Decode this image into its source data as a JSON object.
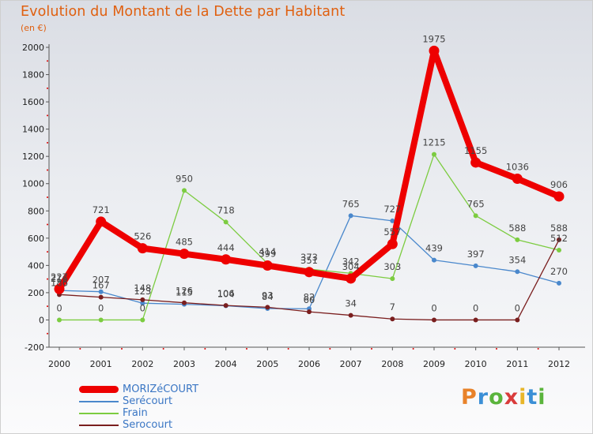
{
  "title": "Evolution du Montant de la Dette par Habitant",
  "subtitle": "(en €)",
  "brand": {
    "text": "Proxiti",
    "letter_colors": [
      "#e8822a",
      "#3b8fd6",
      "#5ab43c",
      "#d93b3b",
      "#e8b62a",
      "#3b8fd6",
      "#5ab43c"
    ]
  },
  "chart_data": {
    "type": "line",
    "x": [
      "2000",
      "2001",
      "2002",
      "2003",
      "2004",
      "2005",
      "2006",
      "2007",
      "2008",
      "2009",
      "2010",
      "2011",
      "2012"
    ],
    "ylim": [
      -200,
      2000
    ],
    "yticks": [
      -200,
      0,
      200,
      400,
      600,
      800,
      1000,
      1200,
      1400,
      1600,
      1800,
      2000
    ],
    "grid": false,
    "legend_position": "bottom-left",
    "series": [
      {
        "name": "Serécourt",
        "color": "#4a88cc",
        "values": [
          216,
          207,
          123,
          115,
          104,
          84,
          82,
          765,
          727,
          439,
          397,
          354,
          270
        ],
        "labels": [
          "216",
          "207",
          "123",
          "115",
          "104",
          "84",
          "82",
          "765",
          "727",
          "439",
          "397",
          "354",
          "270"
        ]
      },
      {
        "name": "Frain",
        "color": "#7ccc40",
        "values": [
          0,
          0,
          0,
          950,
          718,
          414,
          373,
          342,
          303,
          1215,
          765,
          588,
          512
        ],
        "labels": [
          "0",
          "0",
          "0",
          "950",
          "718",
          "414",
          "373",
          "342",
          "303",
          "1215",
          "765",
          "588",
          "512"
        ]
      },
      {
        "name": "Serocourt",
        "color": "#7a1e1e",
        "values": [
          186,
          167,
          148,
          126,
          106,
          93,
          60,
          34,
          7,
          0,
          0,
          0,
          588
        ],
        "labels": [
          "186",
          "167",
          "148",
          "126",
          "106",
          "93",
          "60",
          "34",
          "7",
          "0",
          "0",
          "0",
          "588"
        ]
      },
      {
        "name": "MORIZéCOURT",
        "color": "#ee0000",
        "values": [
          227,
          721,
          526,
          485,
          444,
          399,
          351,
          304,
          557,
          1975,
          1155,
          1036,
          906
        ],
        "labels": [
          "227",
          "721",
          "526",
          "485",
          "444",
          "399",
          "351",
          "304",
          "557",
          "1975",
          "1155",
          "1036",
          "906"
        ]
      }
    ],
    "legend": [
      "MORIZéCOURT",
      "Serécourt",
      "Frain",
      "Serocourt"
    ]
  }
}
